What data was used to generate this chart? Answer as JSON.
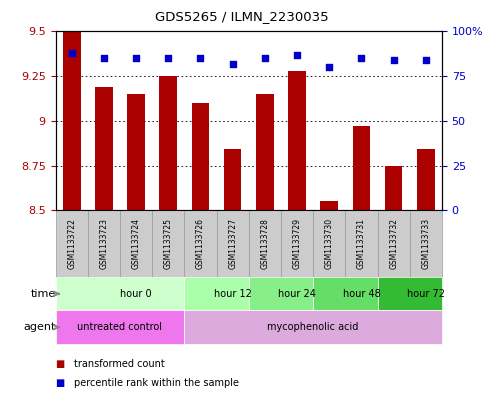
{
  "title": "GDS5265 / ILMN_2230035",
  "samples": [
    "GSM1133722",
    "GSM1133723",
    "GSM1133724",
    "GSM1133725",
    "GSM1133726",
    "GSM1133727",
    "GSM1133728",
    "GSM1133729",
    "GSM1133730",
    "GSM1133731",
    "GSM1133732",
    "GSM1133733"
  ],
  "transformed_counts": [
    9.5,
    9.19,
    9.15,
    9.25,
    9.1,
    8.84,
    9.15,
    9.28,
    8.55,
    8.97,
    8.75,
    8.84
  ],
  "percentile_ranks": [
    88,
    85,
    85,
    85,
    85,
    82,
    85,
    87,
    80,
    85,
    84,
    84
  ],
  "ylim_left": [
    8.5,
    9.5
  ],
  "ylim_right": [
    0,
    100
  ],
  "yticks_left": [
    8.5,
    8.75,
    9.0,
    9.25,
    9.5
  ],
  "yticks_right": [
    0,
    25,
    50,
    75,
    100
  ],
  "ytick_labels_left": [
    "8.5",
    "8.75",
    "9",
    "9.25",
    "9.5"
  ],
  "ytick_labels_right": [
    "0",
    "25",
    "50",
    "75",
    "100%"
  ],
  "bar_color": "#aa0000",
  "dot_color": "#0000cc",
  "grid_color": "#000000",
  "bar_bottom": 8.5,
  "time_groups": [
    {
      "label": "hour 0",
      "start": 0,
      "end": 4,
      "color": "#ccffcc"
    },
    {
      "label": "hour 12",
      "start": 4,
      "end": 6,
      "color": "#aaffaa"
    },
    {
      "label": "hour 24",
      "start": 6,
      "end": 8,
      "color": "#88ee88"
    },
    {
      "label": "hour 48",
      "start": 8,
      "end": 10,
      "color": "#66dd66"
    },
    {
      "label": "hour 72",
      "start": 10,
      "end": 12,
      "color": "#33bb33"
    }
  ],
  "agent_groups": [
    {
      "label": "untreated control",
      "start": 0,
      "end": 4,
      "color": "#ee77ee"
    },
    {
      "label": "mycophenolic acid",
      "start": 4,
      "end": 12,
      "color": "#ddaadd"
    }
  ],
  "sample_box_color": "#cccccc",
  "sample_box_edge": "#999999",
  "legend_bar_label": "transformed count",
  "legend_dot_label": "percentile rank within the sample",
  "background_color": "#ffffff",
  "plot_bg_color": "#ffffff",
  "arrow_color": "#888888"
}
